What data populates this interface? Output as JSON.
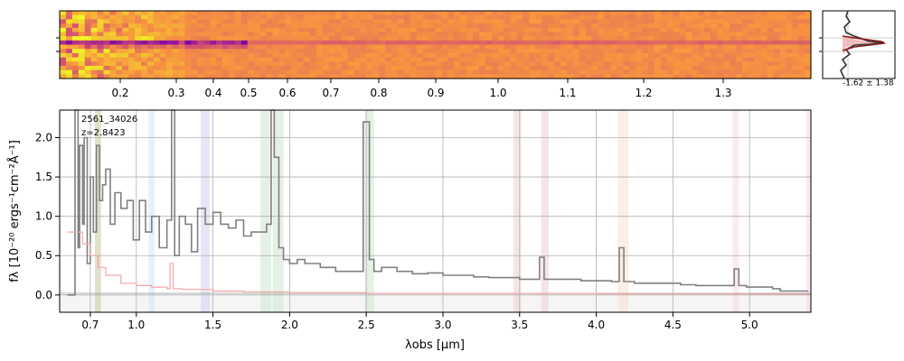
{
  "chart_data": [
    {
      "type": "heatmap",
      "x_ticks": [
        {
          "label": "0.2",
          "value": 0.2
        },
        {
          "label": "0.3",
          "value": 0.3
        },
        {
          "label": "0.4",
          "value": 0.4
        },
        {
          "label": "0.5",
          "value": 0.5
        },
        {
          "label": "0.6",
          "value": 0.6
        },
        {
          "label": "0.7",
          "value": 0.7
        },
        {
          "label": "0.8",
          "value": 0.8
        },
        {
          "label": "0.9",
          "value": 0.9
        },
        {
          "label": "1.0",
          "value": 1.0
        },
        {
          "label": "1.1",
          "value": 1.1
        },
        {
          "label": "1.2",
          "value": 1.2
        },
        {
          "label": "1.3",
          "value": 1.3
        }
      ],
      "colormap": [
        "#0d0887",
        "#7e03a8",
        "#cc4778",
        "#f89540",
        "#f0f921"
      ]
    },
    {
      "type": "line",
      "profile_label": "-1.62 ± 1.38",
      "colors": {
        "line": "#333333",
        "fill": "#f4b6b6",
        "fit": "#8b1a1a"
      }
    },
    {
      "type": "line",
      "annotation": [
        "2561_34026",
        "z=2.8423"
      ],
      "xlabel": "λobs [μm]",
      "ylabel": "fλ [10⁻²⁰ ergs⁻¹cm⁻²Å⁻¹]",
      "xlim": [
        0.5,
        5.4
      ],
      "ylim": [
        -0.22,
        2.35
      ],
      "grid": true,
      "x_ticks": [
        "0.7",
        "1.0",
        "1.5",
        "2.0",
        "2.5",
        "3.0",
        "3.5",
        "4.0",
        "4.5",
        "5.0"
      ],
      "y_ticks": [
        "0.0",
        "0.5",
        "1.0",
        "1.5",
        "2.0"
      ],
      "series": [
        {
          "color": "#808080",
          "x": [
            0.55,
            0.6,
            0.62,
            0.63,
            0.65,
            0.66,
            0.68,
            0.7,
            0.72,
            0.74,
            0.76,
            0.78,
            0.8,
            0.83,
            0.86,
            0.9,
            0.94,
            0.98,
            1.02,
            1.06,
            1.1,
            1.15,
            1.2,
            1.23,
            1.25,
            1.28,
            1.32,
            1.36,
            1.4,
            1.45,
            1.5,
            1.55,
            1.6,
            1.65,
            1.7,
            1.75,
            1.8,
            1.85,
            1.88,
            1.9,
            1.93,
            1.96,
            2.0,
            2.05,
            2.1,
            2.2,
            2.3,
            2.4,
            2.48,
            2.52,
            2.55,
            2.6,
            2.7,
            2.8,
            2.9,
            3.0,
            3.1,
            3.2,
            3.3,
            3.4,
            3.5,
            3.6,
            3.63,
            3.66,
            3.7,
            3.8,
            3.9,
            4.0,
            4.1,
            4.15,
            4.18,
            4.25,
            4.35,
            4.45,
            4.55,
            4.65,
            4.75,
            4.85,
            4.9,
            4.93,
            4.98,
            5.05,
            5.15,
            5.2,
            5.3,
            5.38
          ],
          "y": [
            0.0,
            2.35,
            0.6,
            1.9,
            0.9,
            2.0,
            0.4,
            1.5,
            0.8,
            1.9,
            1.2,
            1.4,
            1.6,
            0.9,
            1.3,
            1.1,
            1.2,
            0.7,
            1.2,
            0.8,
            1.0,
            0.6,
            0.95,
            2.35,
            0.5,
            1.0,
            0.9,
            0.55,
            1.1,
            0.9,
            1.05,
            0.9,
            0.85,
            0.95,
            0.75,
            0.8,
            0.8,
            0.9,
            2.35,
            1.75,
            0.6,
            0.45,
            0.4,
            0.45,
            0.4,
            0.35,
            0.3,
            0.3,
            2.2,
            0.45,
            0.3,
            0.35,
            0.3,
            0.27,
            0.28,
            0.25,
            0.25,
            0.23,
            0.22,
            0.22,
            0.2,
            0.2,
            0.48,
            0.2,
            0.2,
            0.2,
            0.18,
            0.18,
            0.17,
            0.6,
            0.17,
            0.15,
            0.15,
            0.15,
            0.13,
            0.12,
            0.12,
            0.12,
            0.33,
            0.12,
            0.1,
            0.1,
            0.08,
            0.05,
            0.05,
            0.04
          ]
        },
        {
          "color": "#f4a6a6",
          "x": [
            0.55,
            0.6,
            0.65,
            0.7,
            0.75,
            0.8,
            0.9,
            1.0,
            1.1,
            1.2,
            1.22,
            1.24,
            1.3,
            1.5,
            1.7,
            2.0,
            2.5,
            3.0,
            3.5,
            4.0,
            4.5,
            5.0,
            5.4
          ],
          "y": [
            0.8,
            0.8,
            0.65,
            0.5,
            0.35,
            0.25,
            0.15,
            0.12,
            0.1,
            0.08,
            0.4,
            0.08,
            0.07,
            0.05,
            0.04,
            0.03,
            0.02,
            0.02,
            0.02,
            0.015,
            0.015,
            0.01,
            0.01
          ]
        }
      ],
      "bands": [
        {
          "x": [
            0.73,
            0.77
          ],
          "color": "#c8c8a0"
        },
        {
          "x": [
            1.08,
            1.12
          ],
          "color": "#d0e6f5"
        },
        {
          "x": [
            1.42,
            1.48
          ],
          "color": "#d6d2ee"
        },
        {
          "x": [
            1.81,
            1.88
          ],
          "color": "#cfe6cf"
        },
        {
          "x": [
            1.89,
            1.96
          ],
          "color": "#cfe6cf"
        },
        {
          "x": [
            2.49,
            2.55
          ],
          "color": "#cfe6cf"
        },
        {
          "x": [
            3.46,
            3.51
          ],
          "color": "#ecd2cf"
        },
        {
          "x": [
            3.64,
            3.69
          ],
          "color": "#ecd2cf"
        },
        {
          "x": [
            4.14,
            4.21
          ],
          "color": "#f9e0d0"
        },
        {
          "x": [
            4.89,
            4.93
          ],
          "color": "#f5d9ea"
        },
        {
          "x": [
            5.37,
            5.4
          ],
          "color": "#f5d9ea"
        }
      ]
    }
  ]
}
